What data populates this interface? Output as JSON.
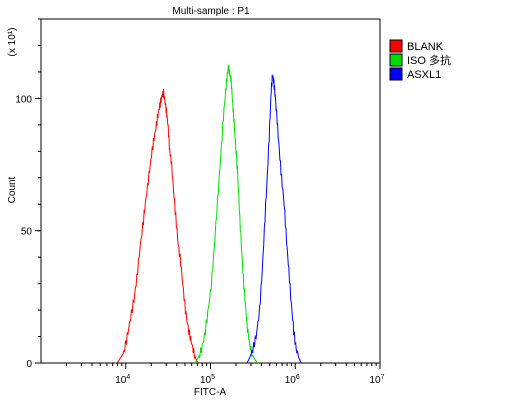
{
  "chart_data": {
    "type": "line",
    "title": "Multi-sample : P1",
    "xlabel": "FITC-A",
    "ylabel": "Count",
    "y_multiplier": "(x 10¹)",
    "x_scale": "log",
    "xlim": [
      1000,
      10000000
    ],
    "ylim": [
      0,
      130
    ],
    "x_ticks": [
      {
        "value": 10000,
        "base": "10",
        "exp": "4"
      },
      {
        "value": 100000,
        "base": "10",
        "exp": "5"
      },
      {
        "value": 1000000,
        "base": "10",
        "exp": "6"
      },
      {
        "value": 10000000,
        "base": "10",
        "exp": "7"
      }
    ],
    "y_ticks": [
      0,
      50,
      100
    ],
    "legend_position": "right",
    "grid": false,
    "series": [
      {
        "name": "BLANK",
        "color": "#ff0000",
        "points": [
          [
            7900,
            0
          ],
          [
            8700,
            2
          ],
          [
            9500,
            4
          ],
          [
            10400,
            10
          ],
          [
            11400,
            17
          ],
          [
            12500,
            24
          ],
          [
            13500,
            32
          ],
          [
            14800,
            44
          ],
          [
            16200,
            54
          ],
          [
            17300,
            62
          ],
          [
            18800,
            71
          ],
          [
            20200,
            79
          ],
          [
            21600,
            85
          ],
          [
            23000,
            90
          ],
          [
            24300,
            95
          ],
          [
            25500,
            98
          ],
          [
            26800,
            101
          ],
          [
            28000,
            102
          ],
          [
            29300,
            98
          ],
          [
            30500,
            94
          ],
          [
            31700,
            89
          ],
          [
            33000,
            80
          ],
          [
            34300,
            77
          ],
          [
            36500,
            66
          ],
          [
            39000,
            55
          ],
          [
            41500,
            45
          ],
          [
            44500,
            38
          ],
          [
            48000,
            27
          ],
          [
            51500,
            18
          ],
          [
            55500,
            12
          ],
          [
            59500,
            8
          ],
          [
            63500,
            4
          ],
          [
            68000,
            1
          ],
          [
            72000,
            0
          ]
        ]
      },
      {
        "name": "ISO 多抗",
        "color": "#00dd00",
        "points": [
          [
            66000,
            0
          ],
          [
            71500,
            2
          ],
          [
            78000,
            5
          ],
          [
            85000,
            10
          ],
          [
            93000,
            19
          ],
          [
            102000,
            29
          ],
          [
            111000,
            44
          ],
          [
            121000,
            61
          ],
          [
            132000,
            78
          ],
          [
            142000,
            93
          ],
          [
            151000,
            103
          ],
          [
            158000,
            109
          ],
          [
            163000,
            112
          ],
          [
            170000,
            109
          ],
          [
            175000,
            107
          ],
          [
            182000,
            99
          ],
          [
            188000,
            93
          ],
          [
            197000,
            83
          ],
          [
            208000,
            73
          ],
          [
            219000,
            58
          ],
          [
            231000,
            45
          ],
          [
            244000,
            32
          ],
          [
            258000,
            22
          ],
          [
            273000,
            13
          ],
          [
            290000,
            7
          ],
          [
            312000,
            3
          ],
          [
            340000,
            1
          ],
          [
            360000,
            0
          ]
        ]
      },
      {
        "name": "ASXL1",
        "color": "#0000ff",
        "points": [
          [
            270000,
            0
          ],
          [
            290000,
            2
          ],
          [
            315000,
            5
          ],
          [
            345000,
            10
          ],
          [
            380000,
            20
          ],
          [
            410000,
            36
          ],
          [
            440000,
            55
          ],
          [
            470000,
            72
          ],
          [
            500000,
            90
          ],
          [
            520000,
            103
          ],
          [
            540000,
            109
          ],
          [
            560000,
            106
          ],
          [
            580000,
            101
          ],
          [
            610000,
            92
          ],
          [
            650000,
            80
          ],
          [
            690000,
            70
          ],
          [
            740000,
            60
          ],
          [
            790000,
            46
          ],
          [
            840000,
            35
          ],
          [
            900000,
            22
          ],
          [
            960000,
            12
          ],
          [
            1030000,
            5
          ],
          [
            1100000,
            2
          ],
          [
            1180000,
            0
          ]
        ]
      }
    ]
  }
}
